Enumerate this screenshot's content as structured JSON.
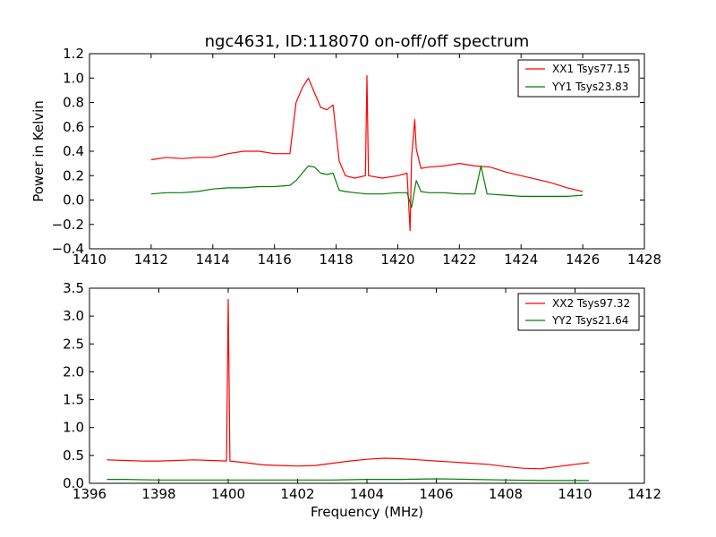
{
  "chart_data": [
    {
      "type": "line",
      "title": "ngc4631, ID:118070 on-off/off spectrum",
      "xlabel": "",
      "ylabel": "Power in Kelvin",
      "xlim": [
        1410,
        1428
      ],
      "ylim": [
        -0.4,
        1.2
      ],
      "xticks": [
        1410,
        1412,
        1414,
        1416,
        1418,
        1420,
        1422,
        1424,
        1426,
        1428
      ],
      "xtick_labels": [
        "1410",
        "1412",
        "1414",
        "1416",
        "1418",
        "1420",
        "1422",
        "1424",
        "1426",
        "1428"
      ],
      "yticks": [
        -0.4,
        -0.2,
        0.0,
        0.2,
        0.4,
        0.6,
        0.8,
        1.0,
        1.2
      ],
      "ytick_labels": [
        "−0.4",
        "−0.2",
        "0.0",
        "0.2",
        "0.4",
        "0.6",
        "0.8",
        "1.0",
        "1.2"
      ],
      "grid": false,
      "legend_position": "top-right",
      "series": [
        {
          "name": "XX1 Tsys77.15",
          "color": "#ff0000",
          "x": [
            1412.0,
            1412.5,
            1413.0,
            1413.5,
            1414.0,
            1414.5,
            1415.0,
            1415.5,
            1416.0,
            1416.5,
            1416.7,
            1416.9,
            1417.1,
            1417.3,
            1417.5,
            1417.7,
            1417.9,
            1418.1,
            1418.3,
            1418.6,
            1418.95,
            1419.0,
            1419.05,
            1419.5,
            1420.0,
            1420.3,
            1420.4,
            1420.45,
            1420.55,
            1420.6,
            1420.75,
            1421.0,
            1421.5,
            1422.0,
            1422.5,
            1423.0,
            1423.5,
            1424.0,
            1424.5,
            1425.0,
            1425.5,
            1426.0
          ],
          "y": [
            0.33,
            0.35,
            0.34,
            0.35,
            0.35,
            0.38,
            0.4,
            0.4,
            0.38,
            0.38,
            0.8,
            0.92,
            1.0,
            0.88,
            0.76,
            0.74,
            0.78,
            0.32,
            0.2,
            0.18,
            0.2,
            1.02,
            0.2,
            0.18,
            0.2,
            0.22,
            -0.25,
            0.35,
            0.66,
            0.42,
            0.26,
            0.27,
            0.28,
            0.3,
            0.28,
            0.27,
            0.23,
            0.2,
            0.17,
            0.14,
            0.1,
            0.07
          ]
        },
        {
          "name": "YY1 Tsys23.83",
          "color": "#007f00",
          "x": [
            1412.0,
            1412.5,
            1413.0,
            1413.5,
            1414.0,
            1414.5,
            1415.0,
            1415.5,
            1416.0,
            1416.5,
            1416.7,
            1416.9,
            1417.1,
            1417.3,
            1417.5,
            1417.7,
            1417.9,
            1418.1,
            1418.3,
            1418.6,
            1419.0,
            1419.5,
            1420.0,
            1420.3,
            1420.45,
            1420.6,
            1420.75,
            1421.0,
            1421.5,
            1422.0,
            1422.5,
            1422.7,
            1422.9,
            1423.5,
            1424.0,
            1424.5,
            1425.0,
            1425.5,
            1426.0
          ],
          "y": [
            0.05,
            0.06,
            0.06,
            0.07,
            0.09,
            0.1,
            0.1,
            0.11,
            0.11,
            0.12,
            0.16,
            0.22,
            0.28,
            0.27,
            0.22,
            0.21,
            0.22,
            0.08,
            0.07,
            0.06,
            0.05,
            0.05,
            0.06,
            0.06,
            -0.06,
            0.16,
            0.07,
            0.06,
            0.06,
            0.05,
            0.05,
            0.28,
            0.05,
            0.04,
            0.03,
            0.03,
            0.03,
            0.03,
            0.04
          ]
        }
      ]
    },
    {
      "type": "line",
      "title": "",
      "xlabel": "Frequency (MHz)",
      "ylabel": "",
      "xlim": [
        1396,
        1412
      ],
      "ylim": [
        0.0,
        3.5
      ],
      "xticks": [
        1396,
        1398,
        1400,
        1402,
        1404,
        1406,
        1408,
        1410,
        1412
      ],
      "xtick_labels": [
        "1396",
        "1398",
        "1400",
        "1402",
        "1404",
        "1406",
        "1408",
        "1410",
        "1412"
      ],
      "yticks": [
        0.0,
        0.5,
        1.0,
        1.5,
        2.0,
        2.5,
        3.0,
        3.5
      ],
      "ytick_labels": [
        "0.0",
        "0.5",
        "1.0",
        "1.5",
        "2.0",
        "2.5",
        "3.0",
        "3.5"
      ],
      "grid": false,
      "legend_position": "top-right",
      "series": [
        {
          "name": "XX2 Tsys97.32",
          "color": "#ff0000",
          "x": [
            1396.5,
            1397.0,
            1397.5,
            1398.0,
            1398.5,
            1399.0,
            1399.5,
            1399.95,
            1400.0,
            1400.05,
            1400.5,
            1401.0,
            1401.5,
            1402.0,
            1402.5,
            1403.0,
            1403.5,
            1404.0,
            1404.5,
            1405.0,
            1405.5,
            1406.0,
            1406.5,
            1407.0,
            1407.5,
            1408.0,
            1408.5,
            1409.0,
            1409.5,
            1410.0,
            1410.4
          ],
          "y": [
            0.42,
            0.41,
            0.4,
            0.4,
            0.41,
            0.42,
            0.41,
            0.4,
            3.3,
            0.4,
            0.37,
            0.33,
            0.32,
            0.31,
            0.32,
            0.36,
            0.4,
            0.43,
            0.45,
            0.44,
            0.42,
            0.4,
            0.38,
            0.36,
            0.34,
            0.3,
            0.27,
            0.26,
            0.3,
            0.34,
            0.37
          ]
        },
        {
          "name": "YY2 Tsys21.64",
          "color": "#007f00",
          "x": [
            1396.5,
            1397.0,
            1398.0,
            1399.0,
            1400.0,
            1401.0,
            1402.0,
            1403.0,
            1404.0,
            1405.0,
            1406.0,
            1407.0,
            1408.0,
            1409.0,
            1409.5,
            1410.0,
            1410.4
          ],
          "y": [
            0.07,
            0.07,
            0.06,
            0.06,
            0.06,
            0.06,
            0.06,
            0.06,
            0.07,
            0.07,
            0.08,
            0.07,
            0.06,
            0.05,
            0.05,
            0.05,
            0.05
          ]
        }
      ]
    }
  ]
}
